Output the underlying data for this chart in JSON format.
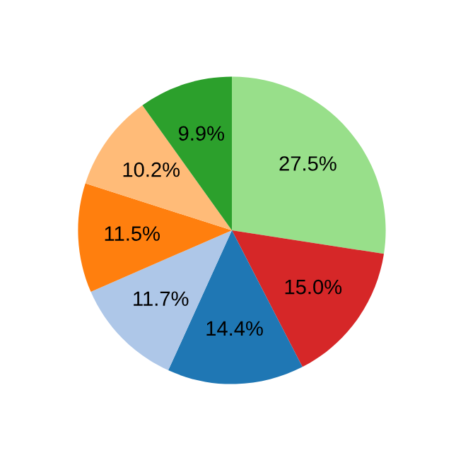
{
  "chart_data": {
    "type": "pie",
    "categories": [
      null,
      null,
      null,
      null,
      null,
      null,
      null
    ],
    "values": [
      27.5,
      15.0,
      14.4,
      11.7,
      11.5,
      10.2,
      9.9
    ],
    "value_labels": [
      "27.5%",
      "15.0%",
      "14.4%",
      "11.7%",
      "11.5%",
      "10.2%",
      "9.9%"
    ],
    "colors": [
      "#98df8a",
      "#d62728",
      "#1f77b4",
      "#aec7e8",
      "#ff7f0e",
      "#ffbb78",
      "#2ca02c"
    ]
  }
}
